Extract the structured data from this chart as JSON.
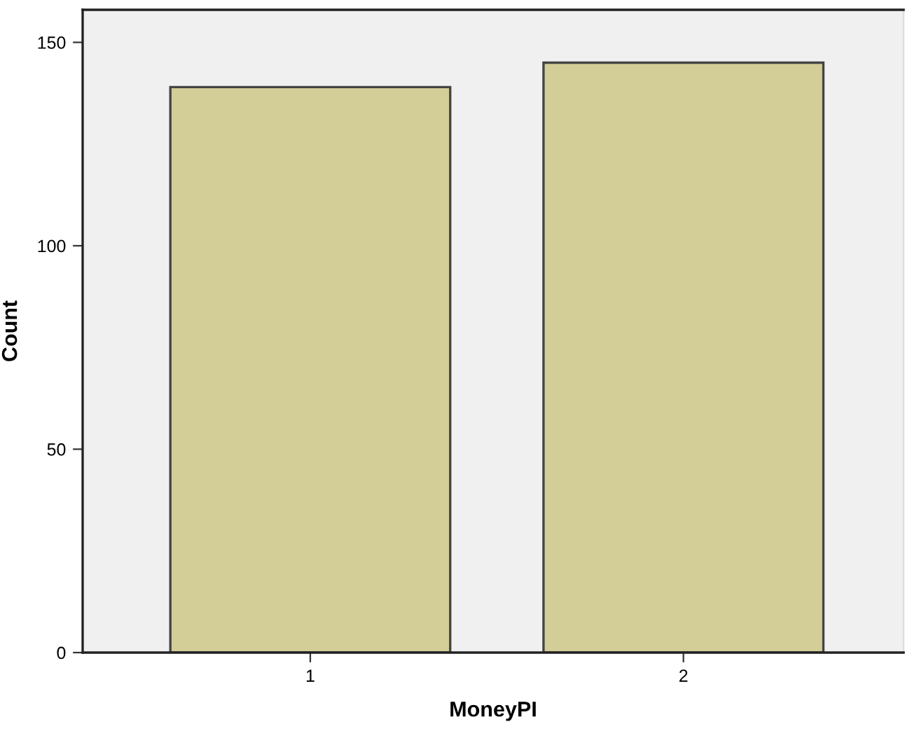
{
  "chart_data": {
    "type": "bar",
    "xlabel": "MoneyPI",
    "ylabel": "Count",
    "categories": [
      "1",
      "2"
    ],
    "series": [
      {
        "color": "#d3cd97",
        "values": [
          139,
          145
        ]
      }
    ],
    "ylim": [
      0,
      158
    ],
    "yticks": [
      0,
      50,
      100,
      150
    ],
    "grid": false,
    "legend": false
  }
}
